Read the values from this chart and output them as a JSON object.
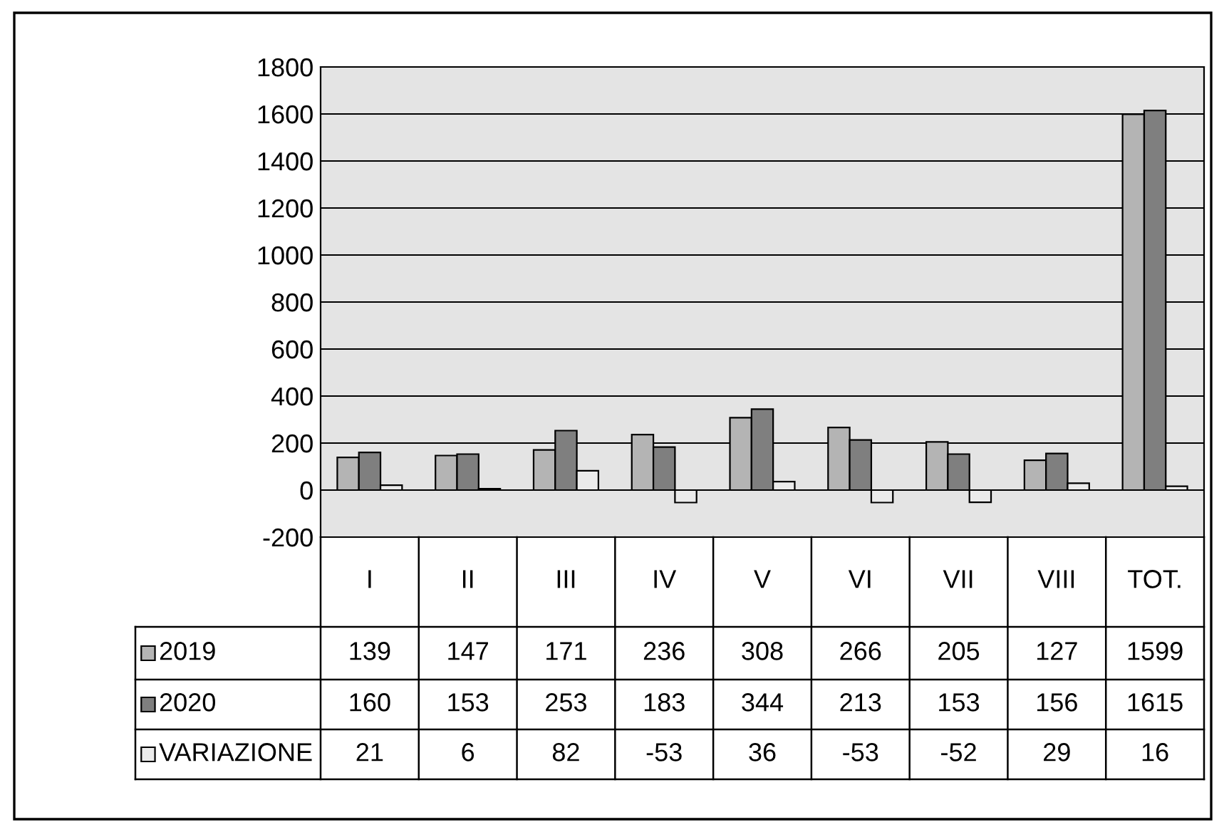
{
  "chart_data": {
    "type": "bar",
    "categories": [
      "I",
      "II",
      "III",
      "IV",
      "V",
      "VI",
      "VII",
      "VIII",
      "TOT."
    ],
    "series": [
      {
        "name": "2019",
        "color": "#b4b4b4",
        "values": [
          139,
          147,
          171,
          236,
          308,
          266,
          205,
          127,
          1599
        ]
      },
      {
        "name": "2020",
        "color": "#7f7f7f",
        "values": [
          160,
          153,
          253,
          183,
          344,
          213,
          153,
          156,
          1615
        ]
      },
      {
        "name": "VARIAZIONE",
        "color": "#ebebeb",
        "values": [
          21,
          6,
          82,
          -53,
          36,
          -53,
          -52,
          29,
          16
        ]
      }
    ],
    "ylim": [
      -200,
      1800
    ],
    "yticks": [
      -200,
      0,
      200,
      400,
      600,
      800,
      1000,
      1200,
      1400,
      1600,
      1800
    ],
    "grid": "y",
    "legend": "bottom",
    "data_labels": true
  }
}
